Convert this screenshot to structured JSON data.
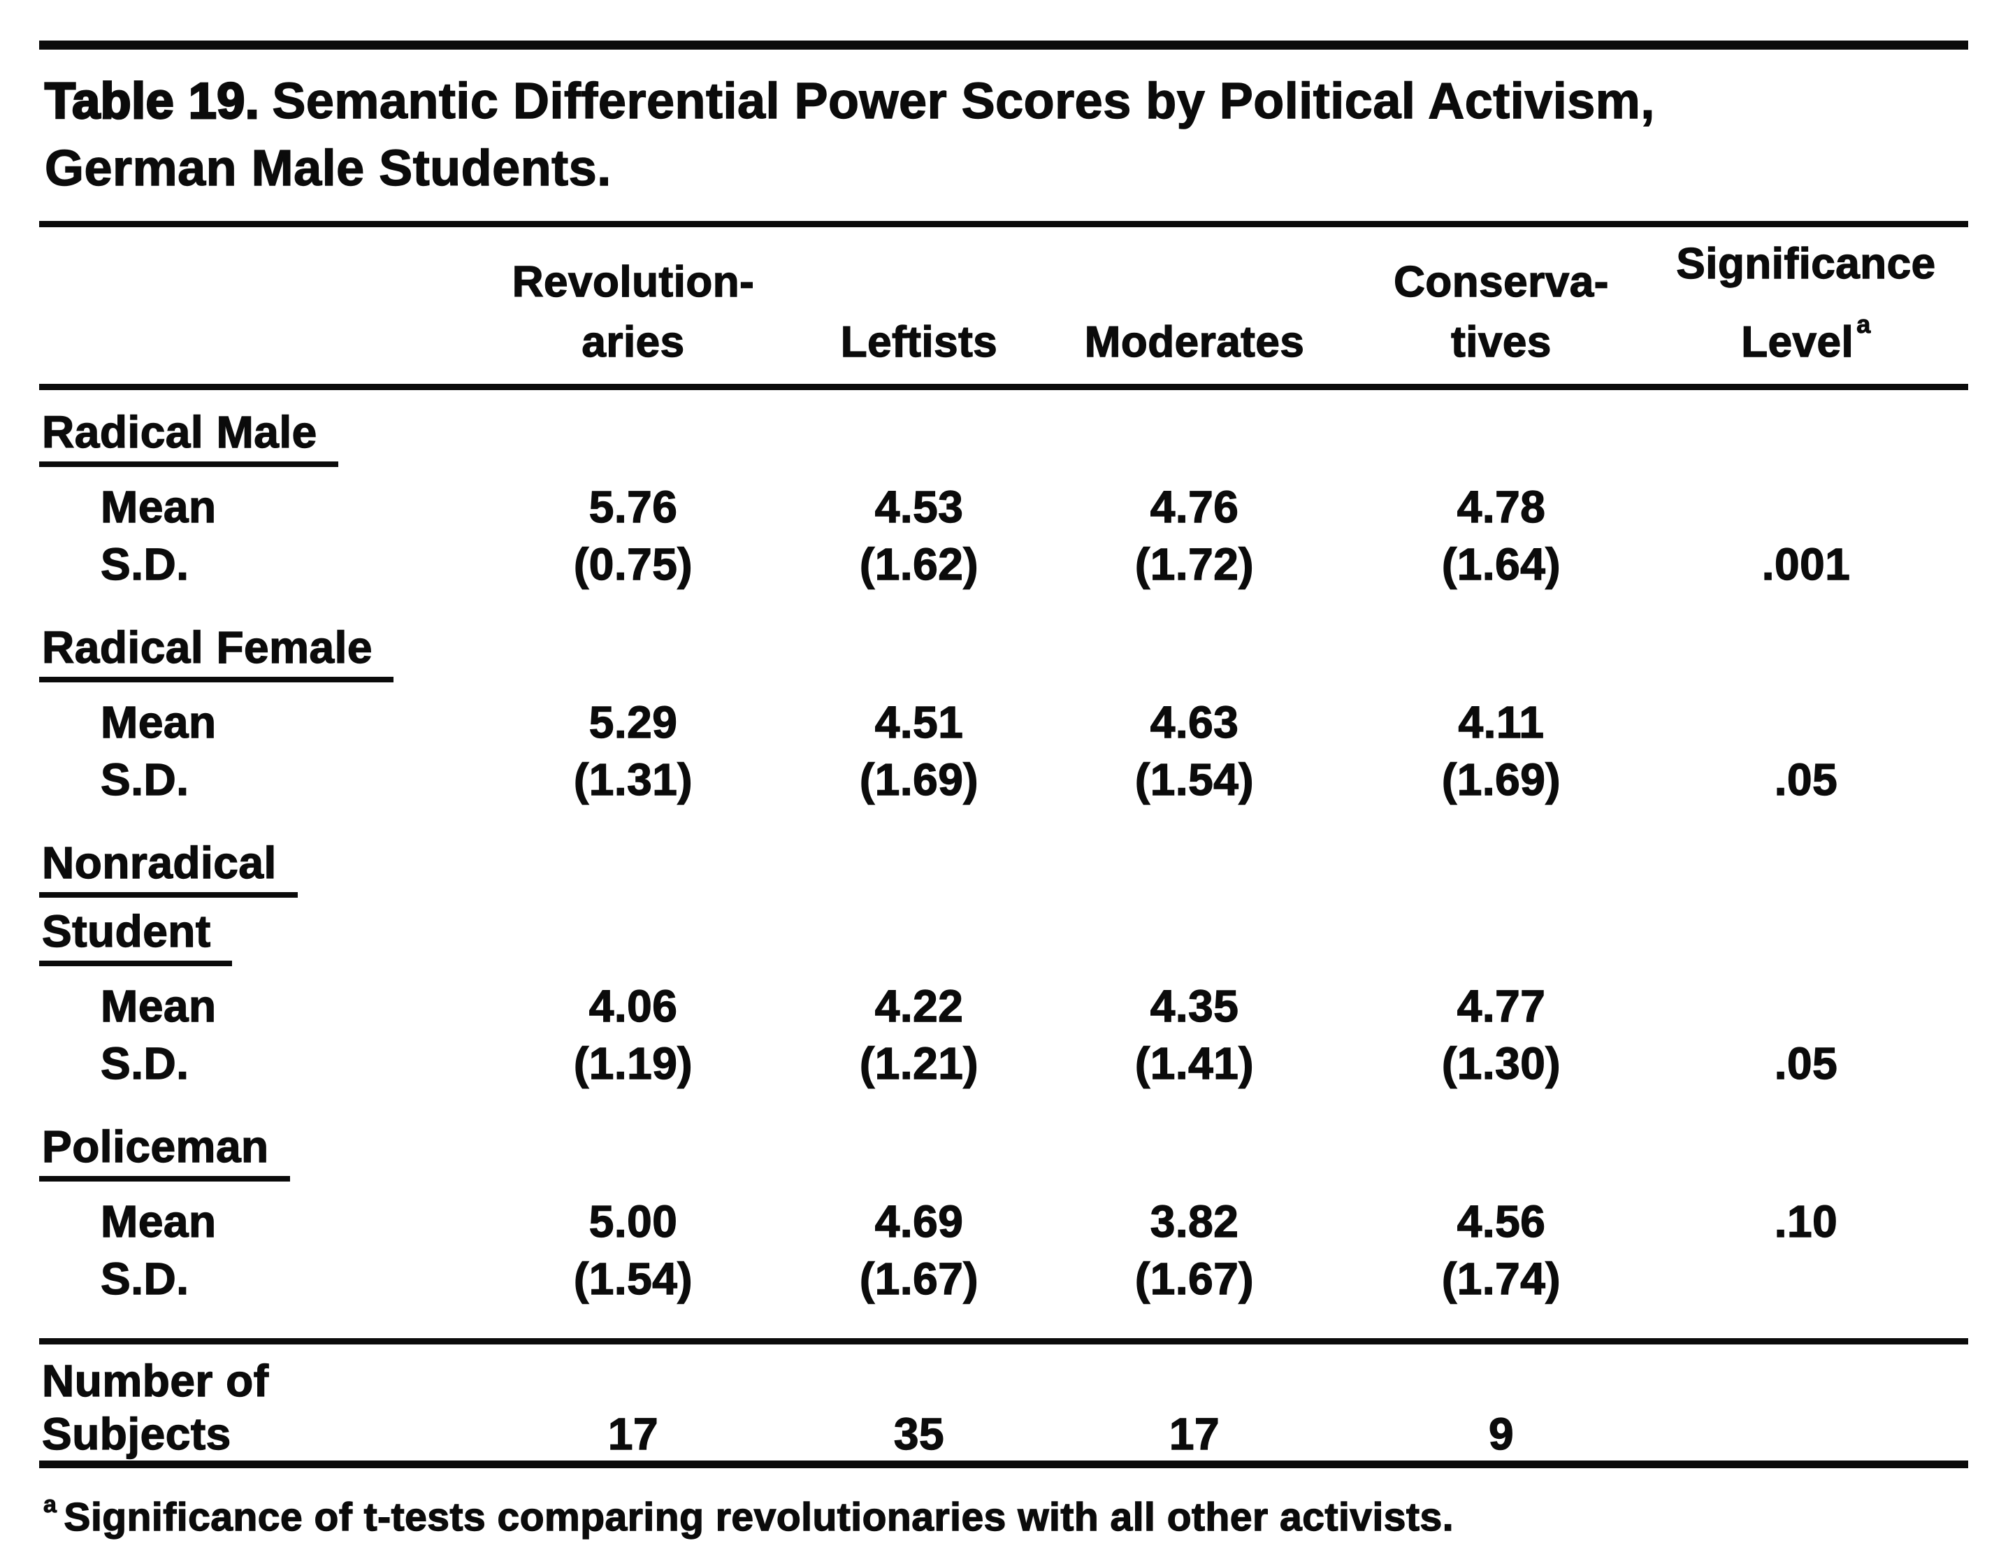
{
  "colors": {
    "ink": "#0b0b0b",
    "paper": "#ffffff"
  },
  "title": {
    "prefix": "Table 19.",
    "line1_rest": "Semantic Differential Power Scores by Political Activism,",
    "line2": "German Male Students."
  },
  "table": {
    "columns": [
      {
        "line1": "Revolution-",
        "line2": "aries"
      },
      {
        "line1": "",
        "line2": "Leftists"
      },
      {
        "line1": "",
        "line2": "Moderates"
      },
      {
        "line1": "Conserva-",
        "line2": "tives"
      },
      {
        "line1": "Significance",
        "line2": "Level",
        "superscript": "a"
      }
    ],
    "row_labels": {
      "mean": "Mean",
      "sd": "S.D."
    },
    "groups": [
      {
        "label_lines": [
          "Radical Male"
        ],
        "mean": [
          "5.76",
          "4.53",
          "4.76",
          "4.78"
        ],
        "mean_sig": "",
        "sd": [
          "(0.75)",
          "(1.62)",
          "(1.72)",
          "(1.64)"
        ],
        "sd_sig": ".001"
      },
      {
        "label_lines": [
          "Radical Female"
        ],
        "mean": [
          "5.29",
          "4.51",
          "4.63",
          "4.11"
        ],
        "mean_sig": "",
        "sd": [
          "(1.31)",
          "(1.69)",
          "(1.54)",
          "(1.69)"
        ],
        "sd_sig": ".05"
      },
      {
        "label_lines": [
          "Nonradical",
          "Student"
        ],
        "mean": [
          "4.06",
          "4.22",
          "4.35",
          "4.77"
        ],
        "mean_sig": "",
        "sd": [
          "(1.19)",
          "(1.21)",
          "(1.41)",
          "(1.30)"
        ],
        "sd_sig": ".05"
      },
      {
        "label_lines": [
          "Policeman"
        ],
        "mean": [
          "5.00",
          "4.69",
          "3.82",
          "4.56"
        ],
        "mean_sig": ".10",
        "sd": [
          "(1.54)",
          "(1.67)",
          "(1.67)",
          "(1.74)"
        ],
        "sd_sig": ""
      }
    ],
    "footer": {
      "label_lines": [
        "Number of",
        "Subjects"
      ],
      "values": [
        "17",
        "35",
        "17",
        "9"
      ]
    }
  },
  "footnote": {
    "marker": "a",
    "text": "Significance of t-tests comparing revolutionaries with all other activists."
  }
}
